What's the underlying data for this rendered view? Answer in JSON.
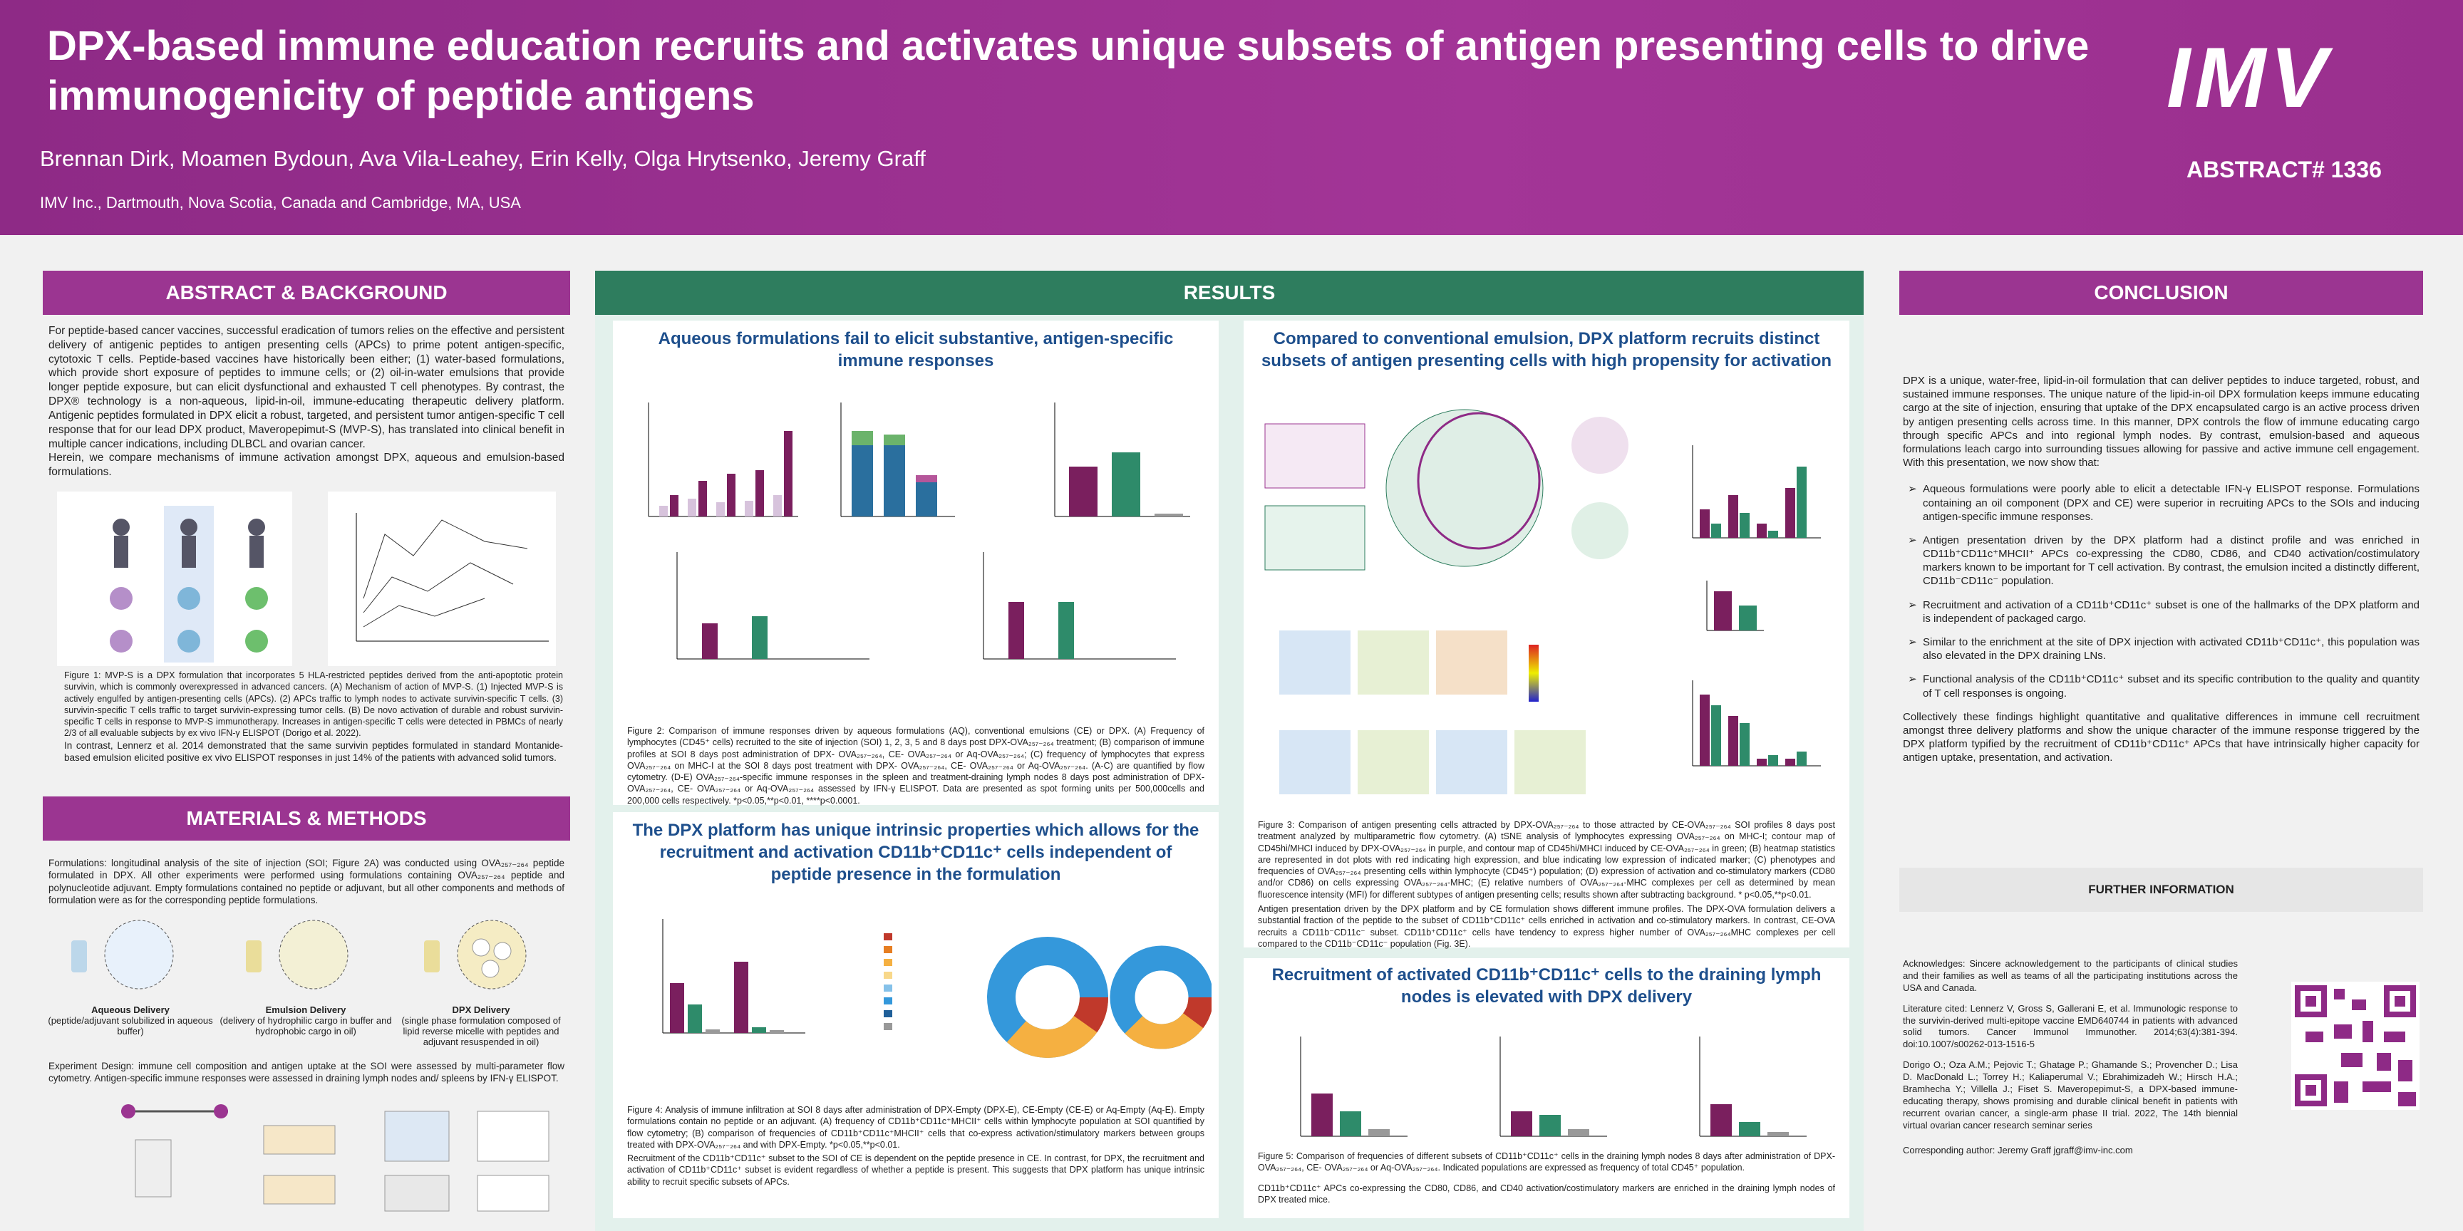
{
  "header": {
    "title": "DPX-based immune education recruits and activates unique subsets of antigen presenting cells to drive immunogenicity of peptide antigens",
    "authors": "Brennan Dirk, Moamen Bydoun, Ava Vila-Leahey, Erin Kelly, Olga Hrytsenko, Jeremy Graff",
    "affiliation": "IMV Inc., Dartmouth, Nova Scotia, Canada and Cambridge, MA, USA",
    "logo": "IMV",
    "abstract_number": "ABSTRACT# 1336"
  },
  "abstract": {
    "heading": "ABSTRACT & BACKGROUND",
    "paragraphs": [
      "For peptide-based cancer vaccines, successful eradication of tumors relies on the effective and persistent delivery of antigenic peptides to antigen presenting cells (APCs) to prime potent antigen-specific, cytotoxic T cells. Peptide-based vaccines have historically been either; (1) water-based formulations, which provide short exposure of peptides to immune cells; or (2) oil-in-water emulsions that provide longer peptide exposure, but can elicit dysfunctional and exhausted T cell phenotypes. By contrast, the DPX® technology is a non-aqueous, lipid-in-oil, immune-educating therapeutic delivery platform. Antigenic peptides formulated in DPX elicit a robust, targeted, and persistent tumor antigen-specific T cell response that for our lead DPX product, Maveropepimut-S (MVP-S), has translated into clinical benefit in multiple cancer indications, including DLBCL and ovarian cancer.",
      "Herein, we compare mechanisms of immune activation amongst DPX, aqueous and emulsion-based formulations."
    ],
    "figure1_caption": "Figure 1: MVP-S is a DPX formulation that incorporates 5 HLA-restricted peptides derived from the anti-apoptotic protein survivin, which is commonly overexpressed in advanced cancers. (A) Mechanism of action of MVP-S. (1) Injected MVP-S is actively engulfed by antigen-presenting cells (APCs). (2) APCs traffic to lymph nodes to activate survivin-specific T cells. (3) survivin-specific T cells traffic to target survivin-expressing tumor cells. (B) De novo activation of durable and robust survivin-specific T cells in response to MVP-S immunotherapy. Increases in antigen-specific T cells were detected in PBMCs of nearly 2/3 of all evaluable subjects by ex vivo IFN-γ ELISPOT (Dorigo et al. 2022).",
    "closing": "In contrast, Lennerz et al. 2014 demonstrated that the same survivin peptides formulated in standard Montanide-based emulsion elicited positive ex vivo ELISPOT responses in just 14% of the patients with advanced solid tumors."
  },
  "methods": {
    "heading": "MATERIALS & METHODS",
    "formulations": "Formulations: longitudinal analysis of the site of injection (SOI; Figure 2A) was conducted using OVA₂₅₇₋₂₆₄ peptide formulated in DPX. All other experiments were performed using formulations containing OVA₂₅₇₋₂₆₄ peptide and polynucleotide adjuvant. Empty formulations contained no peptide or adjuvant, but all other components and methods of formulation were as for the corresponding peptide formulations.",
    "deliveries": [
      {
        "name": "Aqueous Delivery",
        "desc": "(peptide/adjuvant solubilized in aqueous buffer)"
      },
      {
        "name": "Emulsion Delivery",
        "desc": "(delivery of hydrophilic cargo in buffer and hydrophobic cargo in oil)"
      },
      {
        "name": "DPX Delivery",
        "desc": "(single phase formulation composed of lipid reverse micelle with peptides and adjuvant resuspended in oil)"
      }
    ],
    "design": "Experiment Design: immune cell composition and antigen uptake at the SOI were assessed by multi-parameter flow cytometry. Antigen-specific immune responses were assessed in draining lymph nodes and/ spleens by IFN-γ ELISPOT."
  },
  "results": {
    "heading": "RESULTS",
    "sections": [
      {
        "title": "Aqueous formulations fail to elicit substantive, antigen-specific immune responses",
        "caption": "Figure 2: Comparison of immune responses driven by aqueous formulations (AQ), conventional emulsions (CE) or DPX. (A) Frequency of lymphocytes (CD45⁺ cells) recruited to the site of injection (SOI) 1, 2, 3, 5 and 8 days post DPX-OVA₂₅₇₋₂₆₄ treatment; (B) comparison of immune profiles at SOI 8 days post administration of DPX- OVA₂₅₇₋₂₆₄, CE- OVA₂₅₇₋₂₆₄ or Aq-OVA₂₅₇₋₂₆₄; (C) frequency of lymphocytes that express OVA₂₅₇₋₂₆₄ on MHC-I at the SOI 8 days post treatment with DPX- OVA₂₅₇₋₂₆₄, CE- OVA₂₅₇₋₂₆₄ or Aq-OVA₂₅₇₋₂₆₄. (A-C) are quantified by flow cytometry. (D-E) OVA₂₅₇₋₂₆₄-specific immune responses in the spleen and treatment-draining lymph nodes 8 days post administration of DPX- OVA₂₅₇₋₂₆₄, CE- OVA₂₅₇₋₂₆₄ or Aq-OVA₂₅₇₋₂₆₄ assessed by IFN-γ ELISPOT. Data are presented as spot forming units per 500,000cells and 200,000 cells respectively. *p<0.05,**p<0.01, ****p<0.0001.",
        "note": ""
      },
      {
        "title": "Compared to conventional emulsion, DPX platform recruits distinct subsets of antigen presenting cells with high propensity for activation",
        "caption": "Figure 3: Comparison of antigen presenting cells attracted by DPX-OVA₂₅₇₋₂₆₄ to those attracted by CE-OVA₂₅₇₋₂₆₄ SOI profiles 8 days post treatment analyzed by multiparametric flow cytometry. (A) tSNE analysis of lymphocytes expressing OVA₂₅₇₋₂₆₄ on MHC-I; contour map of CD45hi/MHCI induced by DPX-OVA₂₅₇₋₂₆₄ in purple, and contour map of CD45hi/MHCI induced by CE-OVA₂₅₇₋₂₆₄ in green; (B) heatmap statistics are represented in dot plots with red indicating high expression, and blue indicating low expression of indicated marker; (C) phenotypes and frequencies of OVA₂₅₇₋₂₆₄ presenting cells within lymphocyte (CD45⁺) population; (D) expression of activation and co-stimulatory markers (CD80 and/or CD86) on cells expressing OVA₂₅₇₋₂₆₄-MHC; (E) relative numbers of OVA₂₅₇₋₂₆₄-MHC complexes per cell as determined by mean fluorescence intensity (MFI) for different subtypes of antigen presenting cells; results shown after subtracting background.  * p<0.05,**p<0.01.",
        "note": "Antigen presentation driven by the DPX platform and by CE formulation shows different immune profiles. The DPX-OVA formulation delivers a substantial fraction of the peptide to the subset of CD11b⁺CD11c⁺ cells enriched in activation and co-stimulatory markers. In contrast, CE-OVA recruits a CD11b⁻CD11c⁻ subset. CD11b⁺CD11c⁺ cells have tendency to express higher number of OVA₂₅₇₋₂₆₄MHC complexes per cell compared to the CD11b⁻CD11c⁻ population (Fig. 3E)."
      },
      {
        "title": "The DPX platform has unique intrinsic properties which allows for the recruitment  and activation CD11b⁺CD11c⁺ cells independent of peptide presence in the formulation",
        "caption": "Figure 4: Analysis of immune infiltration at SOI 8 days after administration of DPX-Empty (DPX-E), CE-Empty (CE-E) or Aq-Empty (Aq-E). Empty formulations contain no peptide or an adjuvant. (A) frequency of CD11b⁺CD11c⁺MHCII⁺ cells within lymphocyte population at SOI quantified by flow cytometry; (B) comparison of frequencies of CD11b⁺CD11c⁺MHCII⁺ cells that co-express activation/stimulatory markers between groups treated with DPX-OVA₂₅₇₋₂₆₄ and with DPX-Empty. *p<0.05,**p<0.01.",
        "note": "Recruitment of the CD11b⁺CD11c⁺ subset to the SOI of CE is dependent on the peptide presence in CE. In contrast, for DPX, the recruitment and activation of CD11b⁺CD11c⁺ subset is evident regardless of whether a peptide is present. This suggests that DPX platform has unique intrinsic ability to recruit specific subsets of APCs."
      },
      {
        "title": "Recruitment of activated CD11b⁺CD11c⁺ cells  to the draining lymph nodes is elevated with DPX delivery",
        "caption": "Figure 5: Comparison of frequencies of different subsets of CD11b⁺CD11c⁺ cells in the draining lymph nodes 8 days after administration of DPX- OVA₂₅₇₋₂₆₄, CE- OVA₂₅₇₋₂₆₄ or Aq-OVA₂₅₇₋₂₆₄. Indicated populations are expressed as frequency of total CD45⁺ population.",
        "note": "CD11b⁺CD11c⁺ APCs co-expressing the CD80, CD86, and CD40 activation/costimulatory markers are enriched in the draining lymph nodes of DPX treated mice."
      }
    ]
  },
  "conclusion": {
    "heading": "CONCLUSION",
    "intro": "DPX is a unique, water-free, lipid-in-oil formulation that can deliver peptides to induce targeted, robust, and sustained immune responses. The unique nature of the lipid-in-oil DPX formulation keeps immune educating cargo at the site of injection, ensuring that uptake of the DPX encapsulated cargo is an active process driven by antigen presenting cells across time. In this manner, DPX controls the flow of immune educating cargo through specific APCs and into regional lymph nodes.  By contrast, emulsion-based and aqueous formulations leach cargo into surrounding tissues allowing for passive and active immune cell engagement. With this presentation, we now show that:",
    "bullets": [
      "Aqueous formulations were poorly able to elicit a detectable IFN-γ ELISPOT response. Formulations containing an oil component (DPX and CE) were superior in recruiting APCs to the SOIs and inducing antigen-specific immune responses.",
      "Antigen presentation driven by the DPX platform had a distinct profile and was enriched in CD11b⁺CD11c⁺MHCII⁺ APCs co-expressing the CD80, CD86, and CD40 activation/costimulatory markers known to be important for T cell activation. By contrast, the emulsion incited a distinctly different, CD11b⁻CD11c⁻ population.",
      "Recruitment and activation of a CD11b⁺CD11c⁺ subset is one of the hallmarks of the DPX platform and is independent of packaged cargo.",
      "Similar to the enrichment at the site of DPX injection with activated CD11b⁺CD11c⁺, this population was also elevated in the DPX draining LNs.",
      "Functional analysis of the CD11b⁺CD11c⁺ subset and its specific contribution to the quality and quantity of T cell responses is ongoing."
    ],
    "closing": "Collectively these findings highlight quantitative and qualitative differences in immune cell recruitment amongst three delivery platforms and show the unique character of the immune response triggered by the DPX platform typified by the recruitment of CD11b⁺CD11c⁺ APCs that have intrinsically higher capacity for antigen uptake, presentation, and activation.",
    "further": "FURTHER INFORMATION",
    "acknowledgements": "Acknowledges: Sincere acknowledgement to the participants of clinical studies and their families as well as teams of all the participating institutions across the USA and Canada.",
    "literature": [
      "Literature cited: Lennerz V, Gross S, Gallerani E, et al. Immunologic response to the survivin-derived multi-epitope vaccine EMD640744 in patients with advanced solid tumors. Cancer Immunol Immunother. 2014;63(4):381-394. doi:10.1007/s00262-013-1516-5",
      "Dorigo O.; Oza A.M.; Pejovic T.; Ghatage P.; Ghamande S.; Provencher D.; Lisa D. MacDonald L.; Torrey H.; Kaliaperumal V.; Ebrahimizadeh W.; Hirsch H.A.; Bramhecha Y.; Villella J.; Fiset S. Maveropepimut-S, a DPX-based immune-educating therapy, shows promising and durable clinical benefit in patients with recurrent ovarian cancer, a single-arm phase II trial. 2022, The 14th biennial virtual ovarian cancer research seminar series"
    ],
    "contact": "Corresponding author: Jeremy Graff jgraff@imv-inc.com"
  }
}
